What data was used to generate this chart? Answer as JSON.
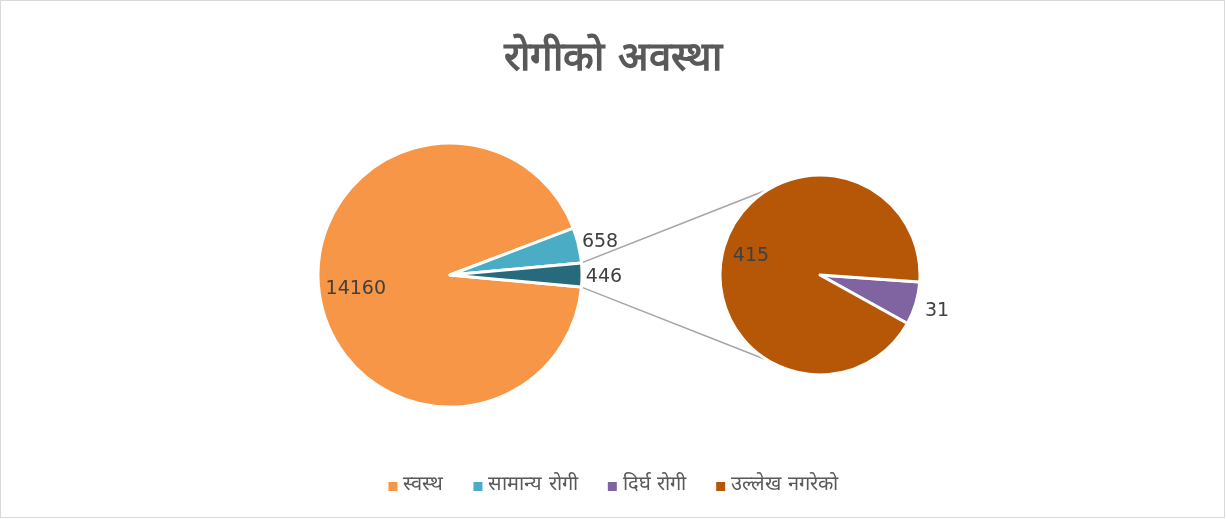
{
  "chart_data": [
    {
      "type": "pie",
      "title": "रोगीको अवस्था",
      "categories": [
        "स्वस्थ",
        "सामान्य रोगी",
        null
      ],
      "values": [
        14160,
        658,
        446
      ],
      "colors": [
        "#f79646",
        "#4bacc6",
        "#276a7c"
      ],
      "data_labels": true,
      "legend": "bottom"
    },
    {
      "type": "pie",
      "categories": [
        "दिर्घ रोगी",
        "उल्लेख नगरेको"
      ],
      "values": [
        31,
        415
      ],
      "colors": [
        "#8064a2",
        "#b65708"
      ],
      "data_labels": true,
      "legend": "bottom"
    }
  ]
}
